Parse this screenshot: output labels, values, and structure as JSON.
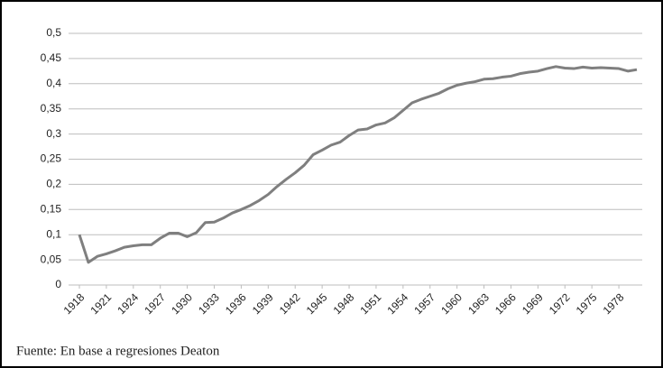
{
  "chart_data": {
    "type": "line",
    "categories": [
      "1918",
      null,
      null,
      "1921",
      null,
      null,
      "1924",
      null,
      null,
      "1927",
      null,
      null,
      "1930",
      null,
      null,
      "1933",
      null,
      null,
      "1936",
      null,
      null,
      "1939",
      null,
      null,
      "1942",
      null,
      null,
      "1945",
      null,
      null,
      "1948",
      null,
      null,
      "1951",
      null,
      null,
      "1954",
      null,
      null,
      "1957",
      null,
      null,
      "1960",
      null,
      null,
      "1963",
      null,
      null,
      "1966",
      null,
      null,
      "1969",
      null,
      null,
      "1972",
      null,
      null,
      "1975",
      null,
      null,
      "1978",
      null,
      null
    ],
    "series": [
      {
        "color": "#7f7f7f",
        "values": [
          0.1,
          0.045,
          0.057,
          0.062,
          0.068,
          0.075,
          0.078,
          0.08,
          0.08,
          0.093,
          0.103,
          0.103,
          0.096,
          0.104,
          0.124,
          0.125,
          0.133,
          0.143,
          0.15,
          0.158,
          0.168,
          0.18,
          0.196,
          0.21,
          0.223,
          0.238,
          0.259,
          0.268,
          0.278,
          0.284,
          0.297,
          0.308,
          0.31,
          0.318,
          0.322,
          0.332,
          0.347,
          0.362,
          0.369,
          0.375,
          0.381,
          0.39,
          0.397,
          0.401,
          0.404,
          0.409,
          0.41,
          0.413,
          0.415,
          0.42,
          0.423,
          0.425,
          0.43,
          0.434,
          0.431,
          0.43,
          0.433,
          0.431,
          0.432,
          0.431,
          0.43,
          0.425,
          0.428
        ]
      }
    ],
    "ylim": [
      0,
      0.5
    ],
    "yticks": [
      0,
      {
        "value": 0.05,
        "label": "0,05"
      },
      {
        "value": 0.1,
        "label": "0,1"
      },
      {
        "value": 0.15,
        "label": "0,15"
      },
      {
        "value": 0.2,
        "label": "0,2"
      },
      {
        "value": 0.25,
        "label": "0,25"
      },
      {
        "value": 0.3,
        "label": "0,3"
      },
      {
        "value": 0.35,
        "label": "0,35"
      },
      {
        "value": 0.4,
        "label": "0,4"
      },
      {
        "value": 0.45,
        "label": "0,45"
      },
      {
        "value": 0.5,
        "label": "0,5"
      }
    ],
    "grid": true,
    "source": "Fuente: En base a regresiones Deaton"
  }
}
